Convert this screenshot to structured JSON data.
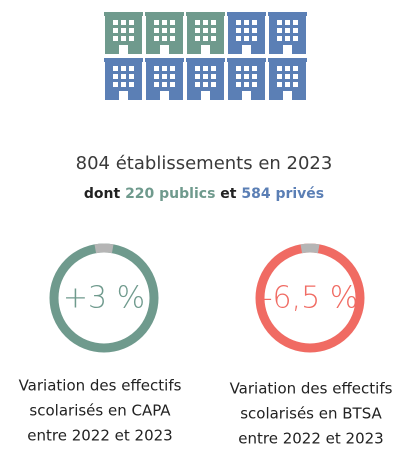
{
  "summary": {
    "headline": "804 établissements en 2023",
    "prefix": "dont",
    "publics": "220 publics",
    "conjunction": "et",
    "prives": "584 privés"
  },
  "stats": [
    {
      "value": "+3 %",
      "caption": [
        "Variation des effectifs",
        "scolarisés en CAPA",
        "entre 2022 et 2023"
      ]
    },
    {
      "value": "-6,5 %",
      "caption": [
        "Variation des effectifs",
        "scolarisés en BTSA",
        "entre 2022 et 2023"
      ]
    }
  ]
}
